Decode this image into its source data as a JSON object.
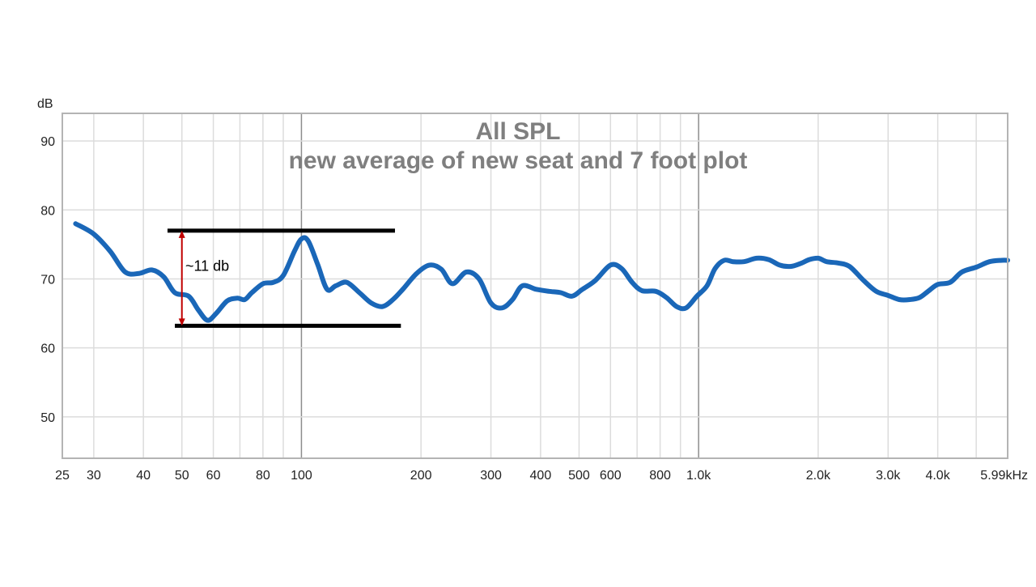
{
  "colors": {
    "series": "#1a67b8",
    "grid": "#dcdcdc",
    "grid_decade": "#8c8c8c",
    "frame": "#b4b4b4",
    "title": "#7f7f7f",
    "annotation_lines": "#000000",
    "annotation_arrow": "#c00000"
  },
  "chart_data": {
    "type": "line",
    "title": "All SPL",
    "subtitle": "new average of new seat and 7 foot plot",
    "ylabel": "dB",
    "xlabel": "",
    "x_scale": "log",
    "xlim": [
      25,
      6000
    ],
    "ylim": [
      44,
      94
    ],
    "grid": true,
    "x_ticks": [
      {
        "value": 25,
        "label": "25"
      },
      {
        "value": 30,
        "label": "30"
      },
      {
        "value": 40,
        "label": "40"
      },
      {
        "value": 50,
        "label": "50"
      },
      {
        "value": 60,
        "label": "60"
      },
      {
        "value": 80,
        "label": "80"
      },
      {
        "value": 100,
        "label": "100"
      },
      {
        "value": 200,
        "label": "200"
      },
      {
        "value": 300,
        "label": "300"
      },
      {
        "value": 400,
        "label": "400"
      },
      {
        "value": 500,
        "label": "500"
      },
      {
        "value": 600,
        "label": "600"
      },
      {
        "value": 800,
        "label": "800"
      },
      {
        "value": 1000,
        "label": "1.0k"
      },
      {
        "value": 2000,
        "label": "2.0k"
      },
      {
        "value": 3000,
        "label": "3.0k"
      },
      {
        "value": 4000,
        "label": "4.0k"
      },
      {
        "value": 5990,
        "label": "5.99kHz"
      }
    ],
    "y_ticks": [
      {
        "value": 50,
        "label": "50"
      },
      {
        "value": 60,
        "label": "60"
      },
      {
        "value": 70,
        "label": "70"
      },
      {
        "value": 80,
        "label": "80"
      },
      {
        "value": 90,
        "label": "90"
      }
    ],
    "minor_grid_x": [
      25,
      30,
      40,
      50,
      60,
      70,
      80,
      90,
      200,
      300,
      400,
      500,
      600,
      700,
      800,
      900,
      2000,
      3000,
      4000,
      5000
    ],
    "decade_grid_x": [
      100,
      1000
    ],
    "series": [
      {
        "x": [
          27,
          30,
          33,
          36,
          39,
          42,
          45,
          48,
          52,
          55,
          58,
          61,
          65,
          69,
          72,
          75,
          80,
          85,
          90,
          96,
          100,
          104,
          110,
          116,
          122,
          130,
          140,
          150,
          160,
          170,
          180,
          195,
          210,
          225,
          240,
          260,
          280,
          300,
          320,
          340,
          360,
          390,
          420,
          450,
          480,
          510,
          550,
          600,
          640,
          680,
          720,
          780,
          830,
          880,
          930,
          990,
          1050,
          1100,
          1160,
          1220,
          1300,
          1400,
          1500,
          1600,
          1700,
          1800,
          1900,
          2000,
          2100,
          2250,
          2400,
          2600,
          2800,
          3000,
          3200,
          3400,
          3600,
          3800,
          4000,
          4300,
          4600,
          5000,
          5400,
          5800,
          6000
        ],
        "y": [
          78,
          76.5,
          74,
          71,
          70.8,
          71.3,
          70.3,
          68,
          67.5,
          65.5,
          64,
          65,
          66.8,
          67.2,
          67,
          68,
          69.3,
          69.5,
          70.5,
          74,
          75.8,
          75.5,
          72,
          68.5,
          69,
          69.5,
          68,
          66.5,
          66,
          67,
          68.5,
          70.8,
          72,
          71.4,
          69.3,
          71,
          70,
          66.5,
          65.8,
          67,
          69,
          68.5,
          68.2,
          68,
          67.5,
          68.5,
          69.8,
          72,
          71.5,
          69.5,
          68.3,
          68.2,
          67.3,
          66,
          65.8,
          67.5,
          69,
          71.5,
          72.7,
          72.5,
          72.5,
          73,
          72.8,
          72,
          71.8,
          72.2,
          72.8,
          73,
          72.5,
          72.3,
          71.8,
          69.8,
          68.2,
          67.6,
          67,
          67,
          67.3,
          68.3,
          69.2,
          69.5,
          71,
          71.7,
          72.5,
          72.7,
          72.7
        ]
      }
    ],
    "annotations": [
      {
        "kind": "hline",
        "y": 77,
        "x_start": 46,
        "x_end": 172
      },
      {
        "kind": "hline",
        "y": 63.2,
        "x_start": 48,
        "x_end": 178
      },
      {
        "kind": "double-arrow",
        "x": 50,
        "y_from": 63.2,
        "y_to": 77
      },
      {
        "kind": "label",
        "text": "~11 db",
        "x": 51,
        "y": 71.2
      }
    ]
  }
}
